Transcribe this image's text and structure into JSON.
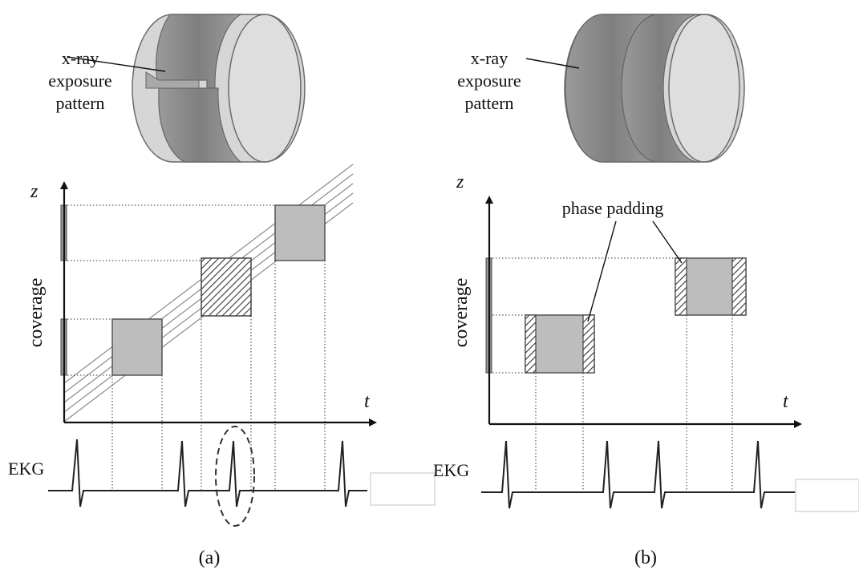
{
  "panel_a": {
    "cylinder_label": [
      "x-ray",
      "exposure",
      "pattern"
    ],
    "axis_z": "z",
    "axis_t": "t",
    "ylabel": "coverage",
    "ekg_label": "EKG",
    "caption": "(a)"
  },
  "panel_b": {
    "cylinder_label": [
      "x-ray",
      "exposure",
      "pattern"
    ],
    "axis_z": "z",
    "axis_t": "t",
    "ylabel": "coverage",
    "ekg_label": "EKG",
    "callout": "phase padding",
    "caption": "(b)"
  },
  "colors": {
    "box_fill": "#bdbdbd",
    "box_stroke": "#555555",
    "band_dark": "#8c8c8c",
    "cylinder_face": "#d9d9d9",
    "ekg": "#222222"
  },
  "icons": {
    "highlight_marker": "dashed-ellipse-icon",
    "placeholder_box": "blank-rectangle-icon"
  }
}
